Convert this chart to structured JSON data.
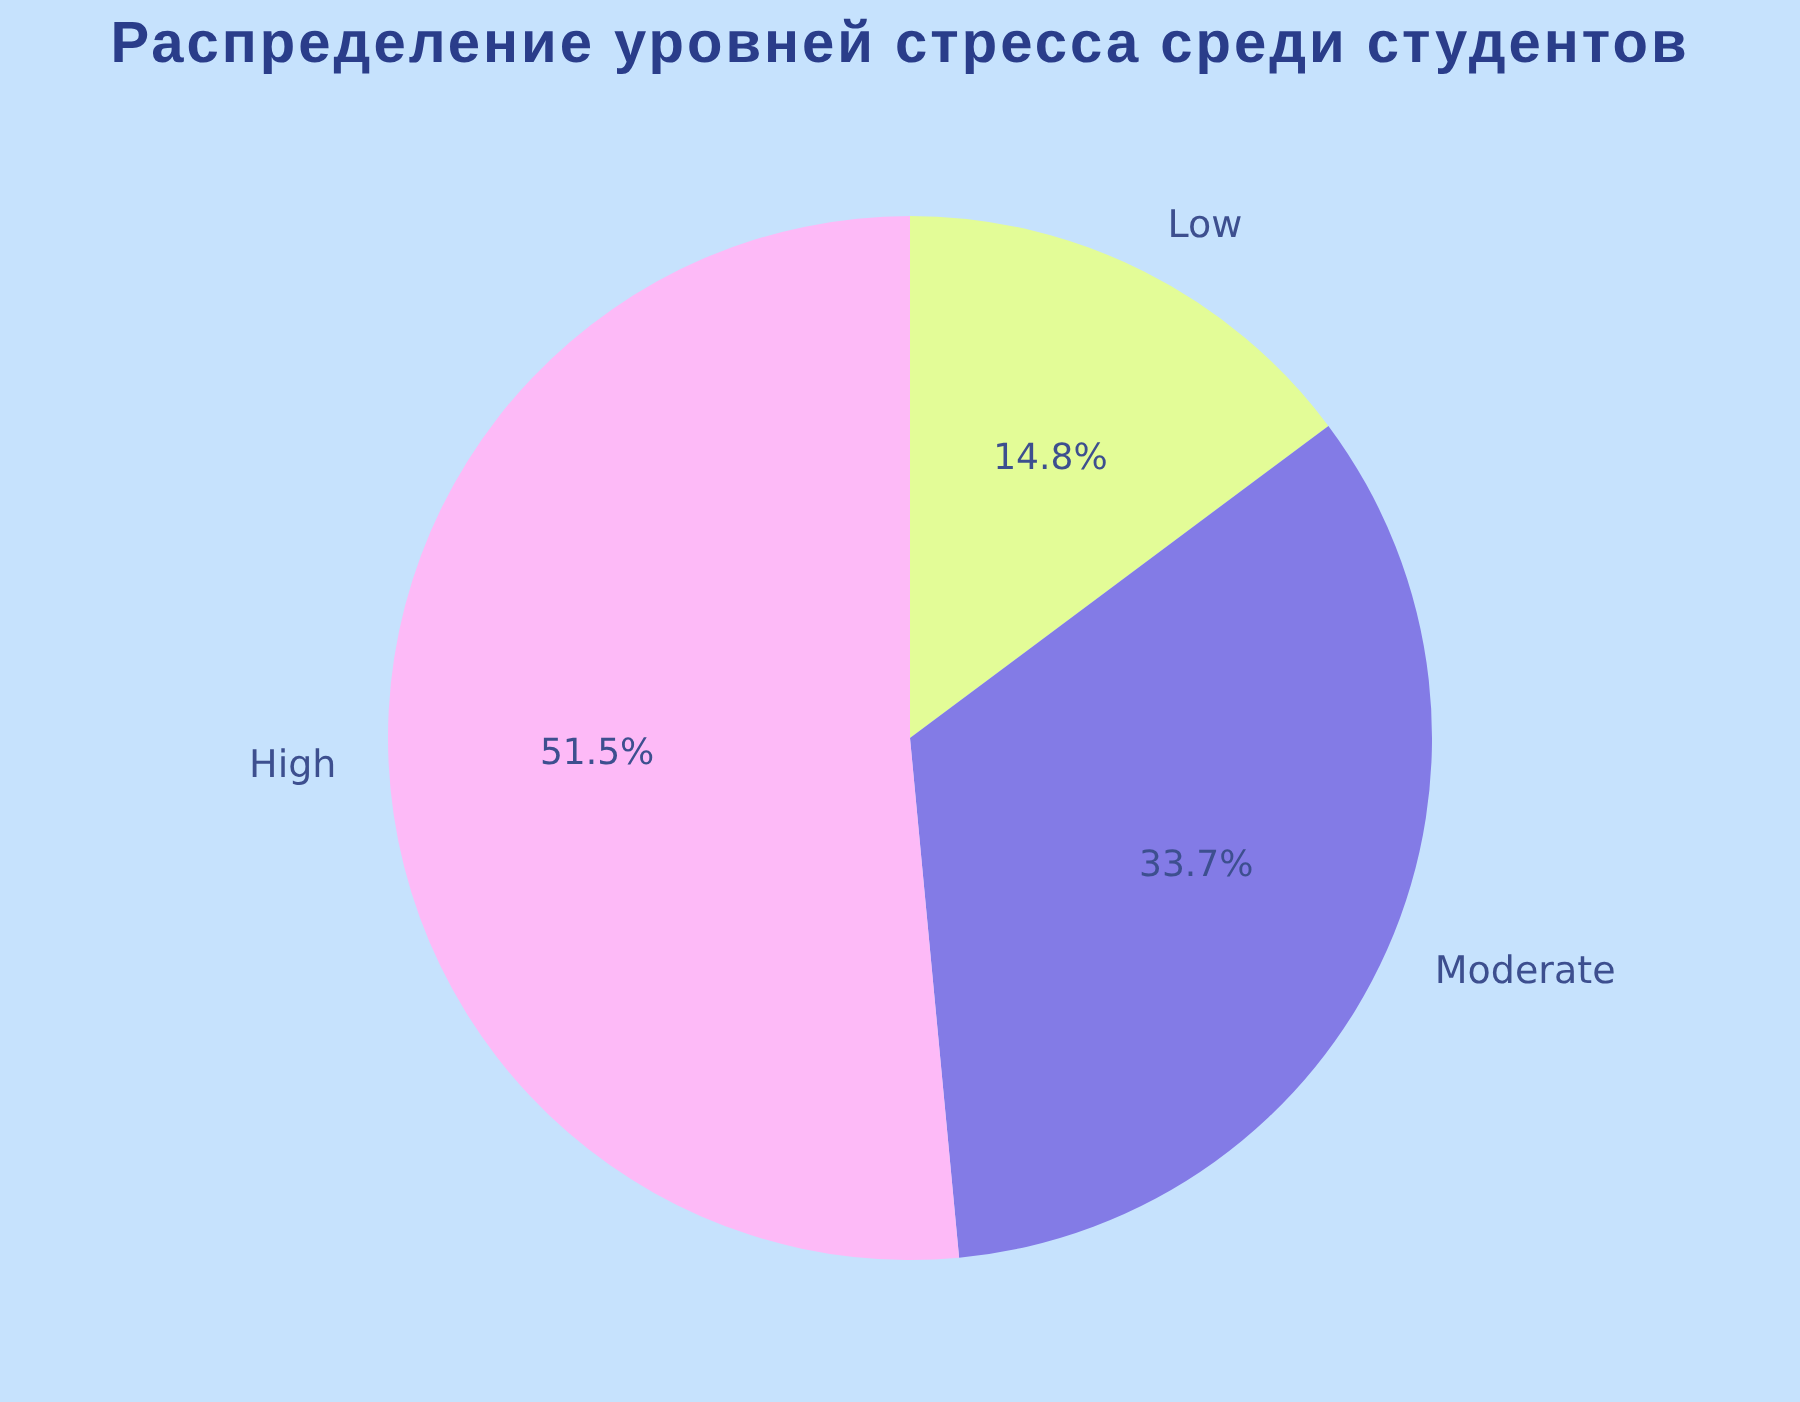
{
  "chart_data": {
    "type": "pie",
    "title": "Распределение уровней стресса среди студентов",
    "categories": [
      "Low",
      "Moderate",
      "High"
    ],
    "values": [
      14.8,
      33.7,
      51.5
    ],
    "colors": [
      "#e3fc97",
      "#837be6",
      "#fdbaf7"
    ],
    "value_labels": [
      "14.8%",
      "33.7%",
      "51.5%"
    ]
  }
}
